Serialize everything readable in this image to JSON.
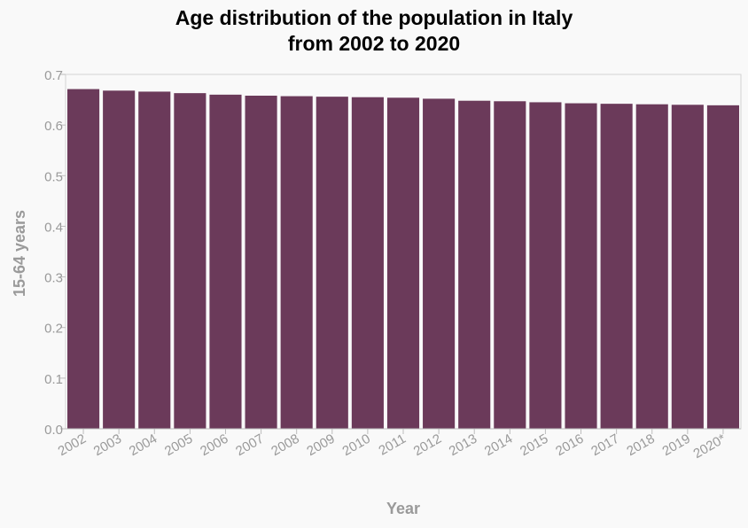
{
  "chart_data": {
    "type": "bar",
    "title_line1": "Age distribution of the population in Italy",
    "title_line2": "from 2002 to 2020",
    "xlabel": "Year",
    "ylabel": "15-64 years",
    "categories": [
      "2002",
      "2003",
      "2004",
      "2005",
      "2006",
      "2007",
      "2008",
      "2009",
      "2010",
      "2011",
      "2012",
      "2013",
      "2014",
      "2015",
      "2016",
      "2017",
      "2018",
      "2019",
      "2020*"
    ],
    "values": [
      0.671,
      0.668,
      0.666,
      0.663,
      0.66,
      0.658,
      0.657,
      0.656,
      0.655,
      0.654,
      0.652,
      0.648,
      0.647,
      0.645,
      0.643,
      0.642,
      0.641,
      0.64,
      0.639
    ],
    "ylim": [
      0,
      0.7
    ],
    "yticks": [
      "0.0",
      "0.1",
      "0.2",
      "0.3",
      "0.4",
      "0.5",
      "0.6",
      "0.7"
    ],
    "grid": false,
    "legend": "none",
    "bar_color": "#6b3a5a",
    "axis_text_color": "#9a9a9a",
    "background_color": "#f9f9f9"
  }
}
